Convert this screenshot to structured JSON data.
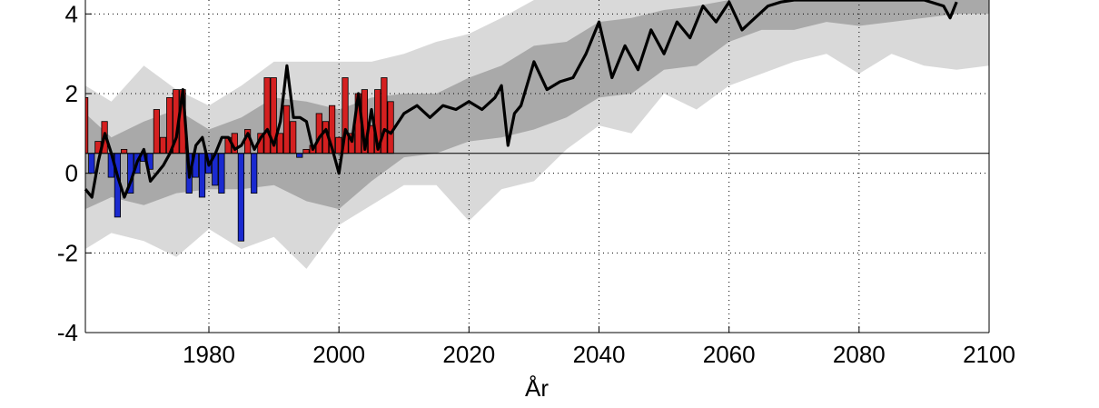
{
  "chart_data": {
    "type": "bar",
    "xlabel": "År",
    "ylabel": "",
    "title": "",
    "xlim": [
      1961,
      2100
    ],
    "ylim": [
      -4,
      4.35
    ],
    "x_ticks": [
      1980,
      2000,
      2020,
      2040,
      2060,
      2080,
      2100
    ],
    "y_ticks": [
      -4,
      -2,
      0,
      2,
      4
    ],
    "grid": true,
    "baseline": 0.5,
    "colors": {
      "positive_bar": "#d42020",
      "negative_bar": "#1a2ad0",
      "mean_line": "#000000",
      "band_outer": "#d9d9d9",
      "band_inner": "#a9a9a9"
    },
    "observed_bars": {
      "x": [
        1961,
        1962,
        1963,
        1964,
        1965,
        1966,
        1967,
        1968,
        1969,
        1970,
        1971,
        1972,
        1973,
        1974,
        1975,
        1976,
        1977,
        1978,
        1979,
        1980,
        1981,
        1982,
        1983,
        1984,
        1985,
        1986,
        1987,
        1988,
        1989,
        1990,
        1991,
        1992,
        1993,
        1994,
        1995,
        1996,
        1997,
        1998,
        1999,
        2000,
        2001,
        2002,
        2003,
        2004,
        2005,
        2006,
        2007,
        2008
      ],
      "values": [
        1.9,
        0.0,
        0.8,
        1.3,
        -0.1,
        -1.1,
        0.6,
        -0.5,
        0.0,
        0.3,
        0.1,
        1.6,
        0.9,
        1.9,
        2.1,
        2.1,
        -0.5,
        -0.1,
        -0.6,
        0.0,
        -0.3,
        -0.5,
        0.9,
        1.0,
        -1.7,
        1.1,
        -0.5,
        1.0,
        2.4,
        2.4,
        1.0,
        1.7,
        1.3,
        0.4,
        0.6,
        0.7,
        1.5,
        1.3,
        1.7,
        0.9,
        2.4,
        1.0,
        2.0,
        2.1,
        1.2,
        2.1,
        2.4,
        1.8
      ]
    },
    "mean_line": {
      "x": [
        1961,
        1962,
        1963,
        1964,
        1965,
        1966,
        1967,
        1968,
        1969,
        1970,
        1971,
        1972,
        1973,
        1974,
        1975,
        1976,
        1977,
        1978,
        1979,
        1980,
        1981,
        1982,
        1983,
        1984,
        1985,
        1986,
        1987,
        1988,
        1989,
        1990,
        1991,
        1992,
        1993,
        1994,
        1995,
        1996,
        1997,
        1998,
        1999,
        2000,
        2001,
        2002,
        2003,
        2004,
        2005,
        2006,
        2007,
        2008,
        2010,
        2012,
        2014,
        2016,
        2018,
        2020,
        2022,
        2024,
        2025,
        2026,
        2027,
        2028,
        2030,
        2032,
        2034,
        2036,
        2038,
        2040,
        2042,
        2044,
        2046,
        2048,
        2050,
        2052,
        2054,
        2056,
        2058,
        2060,
        2062,
        2064,
        2066,
        2068,
        2070,
        2075,
        2080,
        2085,
        2090,
        2093,
        2094,
        2095
      ],
      "values": [
        -0.4,
        -0.6,
        0.3,
        1.0,
        0.5,
        -0.1,
        -0.6,
        -0.2,
        0.3,
        0.6,
        -0.2,
        0.0,
        0.2,
        0.5,
        0.9,
        2.1,
        -0.1,
        0.7,
        0.9,
        0.2,
        0.5,
        0.9,
        0.9,
        0.6,
        0.7,
        1.0,
        0.6,
        0.9,
        1.1,
        0.7,
        1.3,
        2.7,
        1.4,
        1.4,
        1.3,
        0.6,
        0.9,
        1.1,
        0.6,
        0.0,
        1.1,
        0.8,
        2.0,
        0.6,
        1.6,
        0.6,
        1.1,
        1.0,
        1.5,
        1.7,
        1.4,
        1.7,
        1.6,
        1.8,
        1.6,
        1.9,
        2.2,
        0.7,
        1.5,
        1.7,
        2.8,
        2.1,
        2.3,
        2.4,
        3.0,
        3.8,
        2.4,
        3.2,
        2.6,
        3.6,
        3.0,
        3.8,
        3.4,
        4.2,
        3.8,
        4.3,
        3.6,
        3.9,
        4.2,
        4.3,
        4.4,
        4.4,
        4.4,
        4.4,
        4.4,
        4.2,
        3.9,
        4.3
      ]
    },
    "band_outer": {
      "x": [
        1961,
        1965,
        1970,
        1975,
        1980,
        1985,
        1990,
        1995,
        2000,
        2005,
        2010,
        2015,
        2020,
        2025,
        2030,
        2035,
        2040,
        2045,
        2050,
        2055,
        2060,
        2065,
        2070,
        2075,
        2080,
        2085,
        2090,
        2095,
        2100
      ],
      "lower": [
        -1.9,
        -1.5,
        -1.7,
        -2.1,
        -1.4,
        -1.9,
        -1.6,
        -2.4,
        -1.3,
        -0.8,
        -0.3,
        -0.3,
        -1.2,
        -0.4,
        -0.2,
        0.6,
        1.2,
        1.0,
        2.0,
        1.6,
        2.2,
        2.5,
        2.8,
        3.0,
        2.5,
        3.0,
        2.7,
        2.6,
        2.7
      ],
      "upper": [
        2.2,
        1.8,
        2.7,
        2.1,
        1.7,
        2.2,
        2.8,
        2.8,
        2.8,
        2.8,
        3.0,
        3.3,
        3.5,
        3.9,
        4.4,
        4.4,
        4.4,
        4.4,
        4.4,
        4.4,
        4.4,
        4.4,
        4.4,
        4.4,
        4.4,
        4.4,
        4.4,
        4.4,
        4.4
      ]
    },
    "band_inner": {
      "x": [
        1961,
        1965,
        1970,
        1975,
        1980,
        1985,
        1990,
        1995,
        2000,
        2005,
        2010,
        2015,
        2020,
        2025,
        2030,
        2035,
        2040,
        2045,
        2050,
        2055,
        2060,
        2065,
        2070,
        2075,
        2080,
        2085,
        2090,
        2095,
        2100
      ],
      "lower": [
        -0.9,
        -0.6,
        -0.8,
        -0.5,
        -0.4,
        -0.4,
        -0.3,
        -0.7,
        -0.9,
        -0.2,
        0.4,
        0.5,
        0.8,
        0.9,
        1.1,
        1.4,
        1.9,
        2.0,
        2.6,
        2.7,
        3.3,
        3.6,
        3.6,
        3.8,
        3.7,
        3.8,
        3.9,
        4.0,
        4.0
      ],
      "upper": [
        1.5,
        0.9,
        1.3,
        1.6,
        1.1,
        1.4,
        1.9,
        1.8,
        1.6,
        1.9,
        2.0,
        2.0,
        2.4,
        2.7,
        3.2,
        3.3,
        3.8,
        3.9,
        4.1,
        4.2,
        4.4,
        4.4,
        4.4,
        4.4,
        4.4,
        4.4,
        4.4,
        4.4,
        4.4
      ]
    }
  }
}
